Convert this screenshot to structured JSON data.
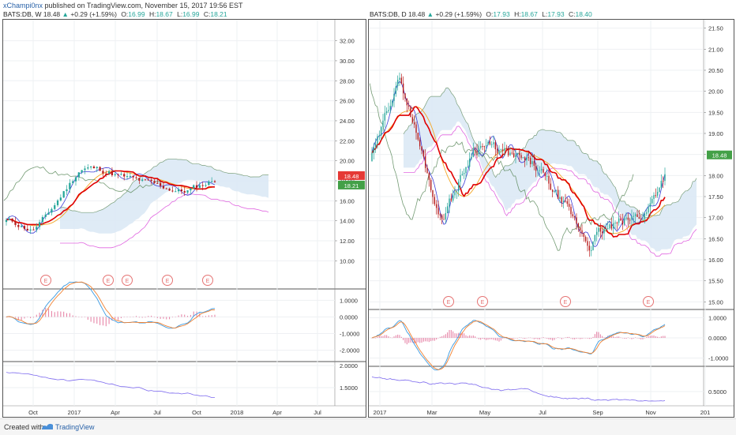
{
  "header": {
    "author": "xChampi0nx",
    "published": "published on TradingView.com, November 15, 2017 19:56 EST"
  },
  "left_chart": {
    "symbol": "BATS:DB, W",
    "last": "18.48",
    "change": "+0.29 (+1.59%)",
    "o_label": "O:",
    "o": "16.99",
    "h_label": "H:",
    "h": "18.67",
    "l_label": "L:",
    "l": "16.99",
    "c_label": "C:",
    "c": "18.21",
    "price_badge": "18.48",
    "close_badge": "18.21",
    "badge_colors": {
      "price": "#e53935",
      "close": "#43a047"
    },
    "price_ticks": [
      "32.00",
      "30.00",
      "28.00",
      "26.00",
      "24.00",
      "22.00",
      "20.00",
      "18.00",
      "16.00",
      "14.00",
      "12.00",
      "10.00"
    ],
    "macd_ticks": [
      "1.0000",
      "0.0000",
      "-1.0000",
      "-2.0000"
    ],
    "osc_ticks": [
      "2.0000",
      "1.5000"
    ],
    "x_ticks": [
      "Oct",
      "2017",
      "Apr",
      "Jul",
      "Oct",
      "2018",
      "Apr",
      "Jul"
    ],
    "earnings": [
      "E",
      "E",
      "E",
      "E",
      "E"
    ]
  },
  "right_chart": {
    "symbol": "BATS:DB, D",
    "last": "18.48",
    "change": "+0.29 (+1.59%)",
    "o_label": "O:",
    "o": "17.93",
    "h_label": "H:",
    "h": "18.67",
    "l_label": "L:",
    "l": "17.93",
    "c_label": "C:",
    "c": "18.40",
    "price_badge": "18.48",
    "price_ticks": [
      "21.50",
      "21.00",
      "20.50",
      "20.00",
      "19.50",
      "19.00",
      "18.50",
      "18.00",
      "17.50",
      "17.00",
      "16.50",
      "16.00",
      "15.50",
      "15.00"
    ],
    "macd_ticks": [
      "1.0000",
      "0.0000",
      "-1.0000"
    ],
    "osc_ticks": [
      "0.5000"
    ],
    "x_ticks": [
      "2017",
      "Mar",
      "May",
      "Jul",
      "Sep",
      "Nov",
      "201"
    ],
    "earnings": [
      "E",
      "E",
      "E",
      "E"
    ]
  },
  "footer": {
    "created_with": "Created with",
    "brand": "TradingView"
  },
  "colors": {
    "up_candle": "#26a69a",
    "down_candle": "#b71c1c",
    "kijun": "#e00000",
    "tenkan": "#3d3dd8",
    "chikou": "#5c8a5c",
    "ema": "#f5a623",
    "senkou_b": "#e066e0",
    "cloud": "#dce9f5"
  }
}
